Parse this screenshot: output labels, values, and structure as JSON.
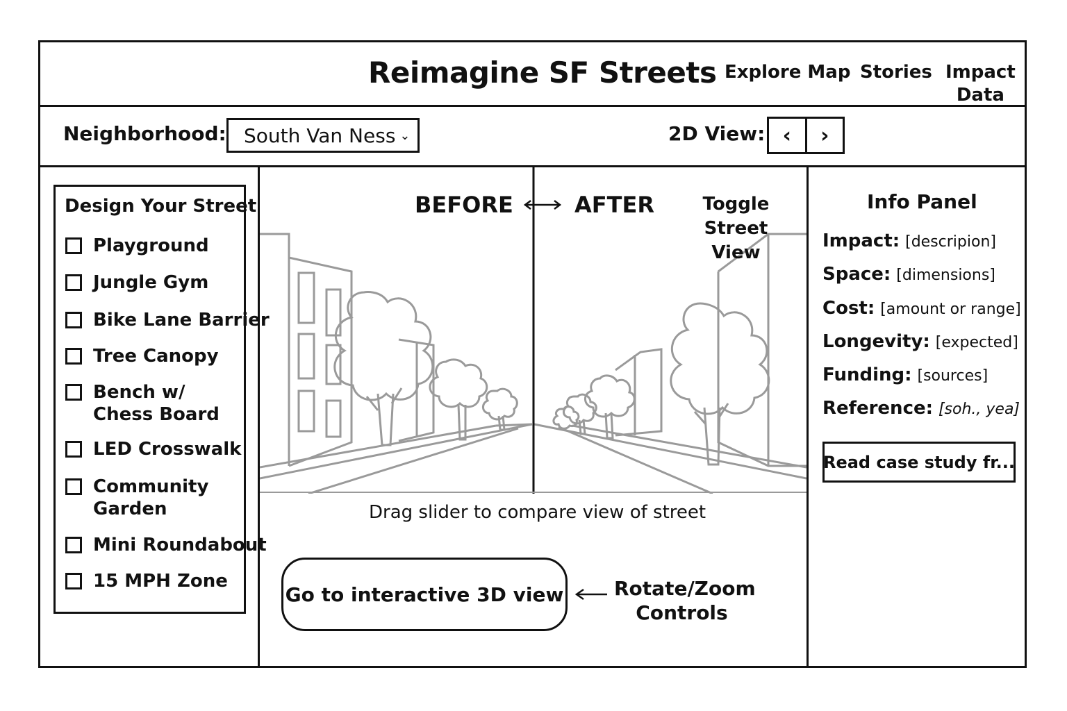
{
  "header": {
    "title": "Reimagine SF Streets",
    "nav": [
      {
        "label": "Explore Map"
      },
      {
        "label": "Stories"
      },
      {
        "label": "Impact\nData"
      }
    ]
  },
  "toolbar": {
    "neighborhood_label": "Neighborhood:",
    "neighborhood_value": "South Van Ness",
    "view_label": "2D View:",
    "prev_glyph": "‹",
    "next_glyph": "›"
  },
  "design": {
    "title": "Design Your Street",
    "options": [
      {
        "label": "Playground",
        "checked": false
      },
      {
        "label": "Jungle Gym",
        "checked": false
      },
      {
        "label": "Bike Lane Barrier",
        "checked": false
      },
      {
        "label": "Tree Canopy",
        "checked": false
      },
      {
        "label": "Bench w/\nChess Board",
        "checked": false
      },
      {
        "label": "LED Crosswalk",
        "checked": false
      },
      {
        "label": "Community\nGarden",
        "checked": false
      },
      {
        "label": "Mini Roundabout",
        "checked": false
      },
      {
        "label": "15 MPH Zone",
        "checked": false
      }
    ]
  },
  "compare": {
    "before_label": "BEFORE",
    "after_label": "AFTER",
    "toggle_label": "Toggle Street\nView",
    "slider_hint": "Drag slider to compare view of street",
    "cta_label": "Go to interactive 3D view",
    "controls_label": "Rotate/Zoom\nControls"
  },
  "info": {
    "title": "Info Panel",
    "rows": [
      {
        "key": "Impact:",
        "value": "[descripion]"
      },
      {
        "key": "Space:",
        "value": "[dimensions]"
      },
      {
        "key": "Cost:",
        "value": "[amount or range]"
      },
      {
        "key": "Longevity:",
        "value": "[expected]"
      },
      {
        "key": "Funding:",
        "value": "[sources]"
      },
      {
        "key": "Reference:",
        "value": "[soh., yea]"
      }
    ],
    "case_study_label": "Read case study fr..."
  },
  "colors": {
    "ink": "#111111",
    "sketch": "#9a9a9a"
  }
}
